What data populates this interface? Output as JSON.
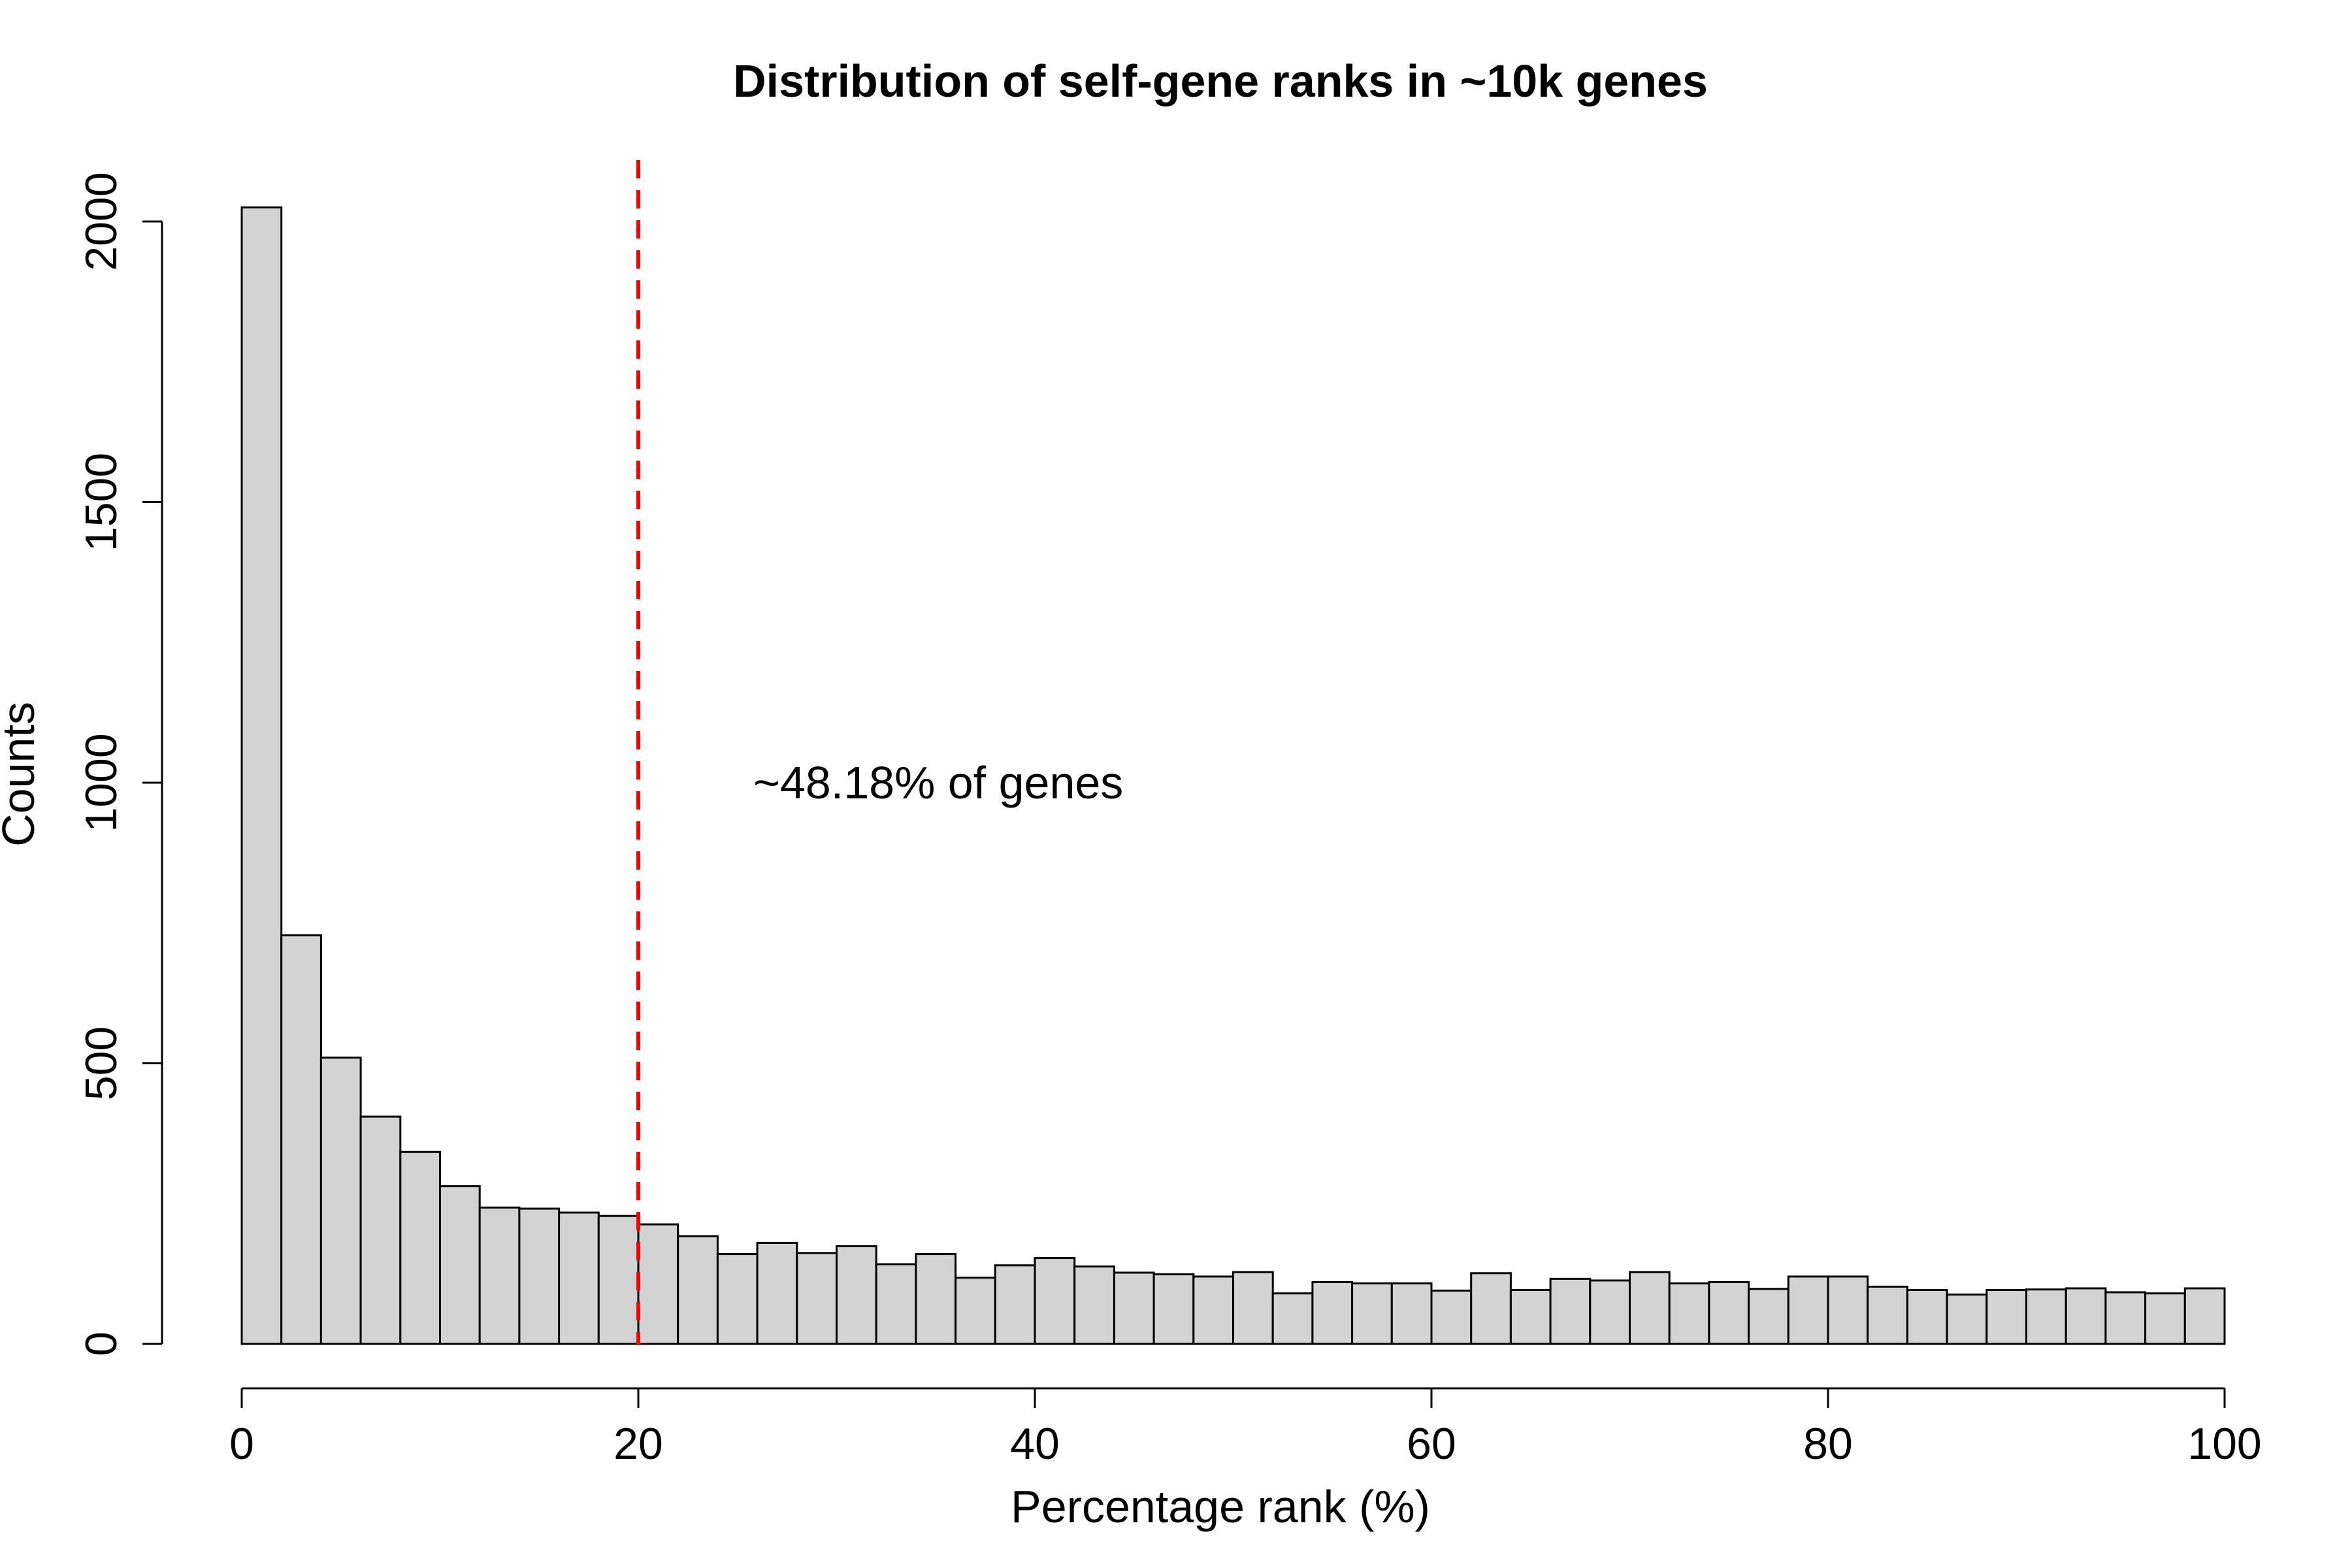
{
  "chart_data": {
    "type": "bar",
    "title": "Distribution of self-gene ranks in ~10k genes",
    "xlabel": "Percentage rank (%)",
    "ylabel": "Counts",
    "xlim": [
      0,
      100
    ],
    "ylim": [
      0,
      2000
    ],
    "x_ticks": [
      0,
      20,
      40,
      60,
      80,
      100
    ],
    "y_ticks": [
      0,
      500,
      1000,
      1500,
      2000
    ],
    "bin_width": 2,
    "bin_start": 0,
    "values": [
      2025,
      728,
      510,
      405,
      342,
      281,
      243,
      241,
      234,
      228,
      213,
      192,
      160,
      180,
      162,
      174,
      142,
      160,
      118,
      140,
      153,
      138,
      127,
      124,
      120,
      128,
      90,
      110,
      108,
      108,
      95,
      126,
      96,
      116,
      113,
      128,
      108,
      110,
      98,
      120,
      120,
      102,
      96,
      88,
      96,
      97,
      99,
      92,
      90,
      99
    ],
    "bar_fill": "#d3d3d3",
    "bar_stroke": "#000000",
    "reference_line": {
      "x": 20,
      "color": "#ff0000",
      "style": "dashed"
    },
    "annotation": {
      "text": "~48.18% of genes",
      "x": 25.8,
      "y": 1000
    },
    "grid": false,
    "legend": "none"
  }
}
